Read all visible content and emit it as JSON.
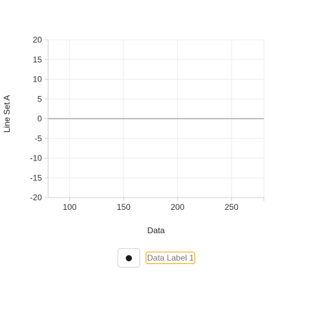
{
  "chart_data": {
    "type": "line",
    "xlabel": "Data",
    "ylabel": "Line Set A",
    "xlim": [
      80,
      280
    ],
    "ylim": [
      -20,
      20
    ],
    "x_ticks": [
      100,
      150,
      200,
      250
    ],
    "y_ticks": [
      20,
      15,
      10,
      5,
      0,
      -5,
      -10,
      -15,
      -20
    ],
    "grid": true,
    "series": [
      {
        "name": "Data Label 1",
        "x": [
          80,
          280
        ],
        "y": [
          0,
          0
        ],
        "color": "#bdbdbd"
      }
    ],
    "legend": {
      "placement": "bottom",
      "marker_color": "#1a1a1a",
      "label_highlight_color": "#f0a500"
    }
  }
}
